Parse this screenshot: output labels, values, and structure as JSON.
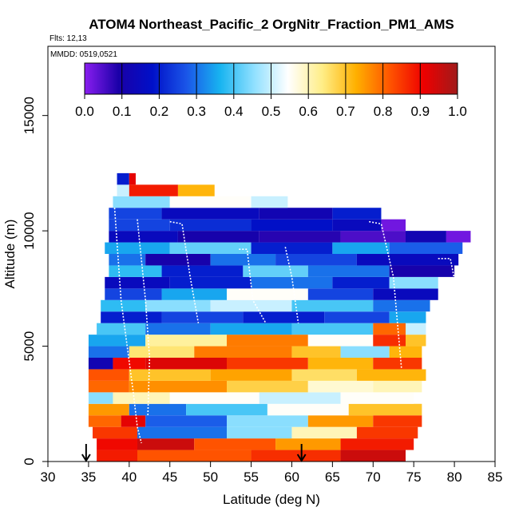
{
  "chart_data": {
    "type": "heatmap",
    "title": "ATOM4 Northeast_Pacific_2 OrgNitr_Fraction_PM1_AMS",
    "flights_label": "Flts: 12,13",
    "date_label": "MMDD: 0519,0521",
    "xlabel": "Latitude (deg N)",
    "ylabel": "Altitude (m)",
    "xlim": [
      30,
      85
    ],
    "ylim": [
      0,
      18000
    ],
    "xticks": [
      "30",
      "35",
      "40",
      "45",
      "50",
      "55",
      "60",
      "65",
      "70",
      "75",
      "80",
      "85"
    ],
    "xtick_values": [
      30,
      35,
      40,
      45,
      50,
      55,
      60,
      65,
      70,
      75,
      80,
      85
    ],
    "yticks": [
      "0",
      "5000",
      "10000",
      "15000"
    ],
    "ytick_values": [
      0,
      5000,
      10000,
      15000
    ],
    "colorbar": {
      "ticks": [
        "0.0",
        "0.1",
        "0.2",
        "0.3",
        "0.4",
        "0.5",
        "0.6",
        "0.7",
        "0.8",
        "0.9",
        "1.0"
      ],
      "tick_values": [
        0,
        0.1,
        0.2,
        0.3,
        0.4,
        0.5,
        0.6,
        0.7,
        0.8,
        0.9,
        1.0
      ],
      "stops": [
        "#8a1ef0",
        "#1a00a8",
        "#0010c8",
        "#1a55e8",
        "#18b4f0",
        "#90e0ff",
        "#ffffff",
        "#ffee88",
        "#ffb000",
        "#ff5500",
        "#ee0000",
        "#a01a1a"
      ]
    },
    "markers": [
      34.7,
      61.2
    ],
    "layers": [
      {
        "alt": [
          0,
          500
        ],
        "segments": [
          [
            36,
            41,
            0.88
          ],
          [
            41,
            55,
            0.82
          ],
          [
            55,
            66,
            0.86
          ],
          [
            66,
            74,
            0.95
          ]
        ]
      },
      {
        "alt": [
          500,
          1000
        ],
        "segments": [
          [
            36,
            41,
            0.9
          ],
          [
            41,
            48,
            0.95
          ],
          [
            48,
            58,
            0.82
          ],
          [
            58,
            66,
            0.75
          ],
          [
            66,
            75,
            0.88
          ]
        ]
      },
      {
        "alt": [
          1000,
          1500
        ],
        "segments": [
          [
            35.5,
            41,
            0.85
          ],
          [
            41,
            52,
            0.3
          ],
          [
            52,
            60,
            0.45
          ],
          [
            60,
            68,
            0.6
          ],
          [
            68,
            75.5,
            0.85
          ]
        ]
      },
      {
        "alt": [
          1500,
          2000
        ],
        "segments": [
          [
            35,
            39,
            0.8
          ],
          [
            39,
            42,
            0.92
          ],
          [
            42,
            52,
            0.28
          ],
          [
            52,
            62,
            0.45
          ],
          [
            62,
            70,
            0.75
          ],
          [
            70,
            76,
            0.85
          ]
        ]
      },
      {
        "alt": [
          2000,
          2500
        ],
        "segments": [
          [
            35,
            40,
            0.75
          ],
          [
            40,
            47,
            0.3
          ],
          [
            47,
            57,
            0.4
          ],
          [
            57,
            67,
            0.55
          ],
          [
            67,
            76,
            0.7
          ]
        ]
      },
      {
        "alt": [
          2500,
          3000
        ],
        "segments": [
          [
            35,
            38,
            0.45
          ],
          [
            38,
            45,
            0.6
          ],
          [
            45,
            56,
            0.55
          ],
          [
            56,
            66,
            0.5
          ],
          [
            66,
            75,
            0.55
          ]
        ]
      },
      {
        "alt": [
          3000,
          3500
        ],
        "segments": [
          [
            35,
            40,
            0.8
          ],
          [
            40,
            52,
            0.76
          ],
          [
            52,
            62,
            0.68
          ],
          [
            62,
            70,
            0.58
          ],
          [
            70,
            76,
            0.6
          ]
        ]
      },
      {
        "alt": [
          3500,
          4000
        ],
        "segments": [
          [
            35,
            40,
            0.82
          ],
          [
            40,
            50,
            0.7
          ],
          [
            50,
            60,
            0.74
          ],
          [
            60,
            68,
            0.66
          ],
          [
            68,
            76.5,
            0.72
          ]
        ]
      },
      {
        "alt": [
          4000,
          4500
        ],
        "segments": [
          [
            35,
            38,
            0.12
          ],
          [
            38,
            42,
            0.9
          ],
          [
            42,
            52,
            0.93
          ],
          [
            52,
            62,
            0.85
          ],
          [
            62,
            70,
            0.72
          ],
          [
            70,
            76,
            0.85
          ]
        ]
      },
      {
        "alt": [
          4500,
          5000
        ],
        "segments": [
          [
            35,
            40,
            0.3
          ],
          [
            40,
            48,
            0.65
          ],
          [
            48,
            60,
            0.78
          ],
          [
            60,
            66,
            0.7
          ],
          [
            66,
            72,
            0.45
          ],
          [
            72,
            76,
            0.72
          ]
        ]
      },
      {
        "alt": [
          5000,
          5500
        ],
        "segments": [
          [
            35,
            42,
            0.35
          ],
          [
            42,
            52,
            0.62
          ],
          [
            52,
            62,
            0.78
          ],
          [
            62,
            70,
            0.55
          ],
          [
            70,
            74,
            0.86
          ],
          [
            74,
            76.5,
            0.7
          ]
        ]
      },
      {
        "alt": [
          5500,
          6000
        ],
        "segments": [
          [
            36,
            42,
            0.4
          ],
          [
            42,
            50,
            0.3
          ],
          [
            50,
            60,
            0.35
          ],
          [
            60,
            70,
            0.4
          ],
          [
            70,
            74,
            0.8
          ],
          [
            74,
            76.5,
            0.5
          ]
        ]
      },
      {
        "alt": [
          6000,
          6500
        ],
        "segments": [
          [
            36.5,
            44,
            0.2
          ],
          [
            44,
            54,
            0.25
          ],
          [
            54,
            64,
            0.2
          ],
          [
            64,
            72,
            0.25
          ],
          [
            72,
            76.5,
            0.35
          ]
        ]
      },
      {
        "alt": [
          6500,
          7000
        ],
        "segments": [
          [
            36.5,
            42,
            0.38
          ],
          [
            42,
            50,
            0.45
          ],
          [
            50,
            60,
            0.5
          ],
          [
            60,
            70,
            0.4
          ],
          [
            70,
            77,
            0.3
          ]
        ]
      },
      {
        "alt": [
          7000,
          7500
        ],
        "segments": [
          [
            37,
            44,
            0.25
          ],
          [
            44,
            52,
            0.35
          ],
          [
            52,
            62,
            0.55
          ],
          [
            62,
            70,
            0.25
          ],
          [
            70,
            78,
            0.15
          ]
        ]
      },
      {
        "alt": [
          7500,
          8000
        ],
        "segments": [
          [
            37,
            45,
            0.15
          ],
          [
            45,
            55,
            0.2
          ],
          [
            55,
            65,
            0.3
          ],
          [
            65,
            72,
            0.2
          ],
          [
            72,
            78,
            0.45
          ]
        ]
      },
      {
        "alt": [
          8000,
          8500
        ],
        "segments": [
          [
            37.5,
            44,
            0.38
          ],
          [
            44,
            54,
            0.2
          ],
          [
            54,
            62,
            0.42
          ],
          [
            62,
            72,
            0.3
          ],
          [
            72,
            80,
            0.1
          ]
        ]
      },
      {
        "alt": [
          8500,
          9000
        ],
        "segments": [
          [
            37.5,
            42,
            0.3
          ],
          [
            42,
            50,
            0.1
          ],
          [
            50,
            58,
            0.3
          ],
          [
            58,
            68,
            0.25
          ],
          [
            68,
            80.5,
            0.15
          ]
        ]
      },
      {
        "alt": [
          9000,
          9500
        ],
        "segments": [
          [
            37,
            45,
            0.35
          ],
          [
            45,
            55,
            0.42
          ],
          [
            55,
            65,
            0.2
          ],
          [
            65,
            72,
            0.35
          ],
          [
            72,
            81,
            0.28
          ]
        ]
      },
      {
        "alt": [
          9500,
          10000
        ],
        "segments": [
          [
            37.5,
            46,
            0.15
          ],
          [
            46,
            56,
            0.1
          ],
          [
            56,
            66,
            0.08
          ],
          [
            66,
            74,
            0.05
          ],
          [
            74,
            79,
            0.12
          ],
          [
            79,
            82,
            0.02
          ]
        ]
      },
      {
        "alt": [
          10000,
          10500
        ],
        "segments": [
          [
            37.5,
            45,
            0.25
          ],
          [
            45,
            55,
            0.22
          ],
          [
            55,
            65,
            0.18
          ],
          [
            65,
            71,
            0.15
          ],
          [
            71,
            74,
            0.02
          ]
        ]
      },
      {
        "alt": [
          10500,
          11000
        ],
        "segments": [
          [
            37.5,
            44,
            0.25
          ],
          [
            44,
            56,
            0.15
          ],
          [
            56,
            65,
            0.12
          ],
          [
            65,
            71,
            0.2
          ]
        ]
      },
      {
        "alt": [
          11000,
          11500
        ],
        "segments": [
          [
            38,
            45,
            0.45
          ],
          [
            45,
            55,
            0.55
          ],
          [
            55,
            59.5,
            0.5
          ]
        ]
      },
      {
        "alt": [
          11500,
          12000
        ],
        "segments": [
          [
            38.5,
            40,
            0.5
          ],
          [
            40,
            46,
            0.88
          ],
          [
            46,
            50.5,
            0.72
          ]
        ]
      },
      {
        "alt": [
          12000,
          12500
        ],
        "segments": [
          [
            38.5,
            40,
            0.2
          ],
          [
            40,
            40.8,
            0.92
          ]
        ]
      }
    ],
    "flight_tracks": [
      [
        [
          38.2,
          11000
        ],
        [
          39,
          7000
        ],
        [
          40.5,
          3000
        ],
        [
          41,
          1500
        ],
        [
          41.5,
          800
        ]
      ],
      [
        [
          41,
          10500
        ],
        [
          42,
          7000
        ],
        [
          42.5,
          4500
        ],
        [
          42.3,
          2000
        ]
      ],
      [
        [
          45,
          10400
        ],
        [
          46.5,
          10300
        ],
        [
          47.5,
          8000
        ],
        [
          48.5,
          6000
        ]
      ],
      [
        [
          53.5,
          9200
        ],
        [
          54.5,
          9200
        ],
        [
          55.2,
          7000
        ],
        [
          56.8,
          6000
        ]
      ],
      [
        [
          59.2,
          9300
        ],
        [
          60,
          8000
        ],
        [
          60.8,
          6000
        ]
      ],
      [
        [
          69.5,
          10400
        ],
        [
          71,
          10300
        ],
        [
          72.5,
          8000
        ],
        [
          73,
          6000
        ],
        [
          73.5,
          4000
        ]
      ],
      [
        [
          78,
          8800
        ],
        [
          79.5,
          8800
        ],
        [
          80.5,
          7000
        ],
        [
          81.5,
          9000
        ]
      ]
    ]
  }
}
